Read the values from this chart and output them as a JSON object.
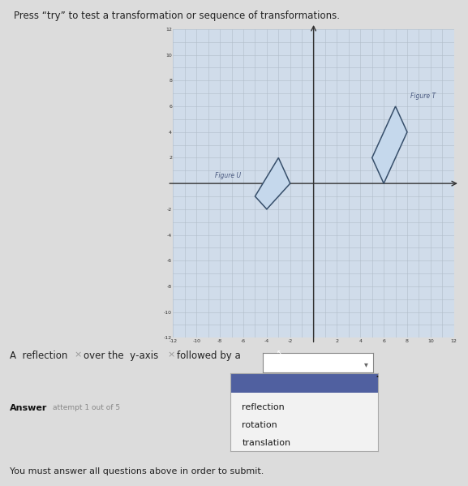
{
  "title": "Press “try” to test a transformation or sequence of transformations.",
  "bg_color": "#dcdcdc",
  "plot_bg_color": "#d0dcea",
  "grid_color": "#b0bcc8",
  "axis_color": "#333333",
  "figure_T_label": "Figure T",
  "figure_U_label": "Figure U",
  "figure_T_vertices": [
    [
      5,
      2
    ],
    [
      7,
      6
    ],
    [
      8,
      4
    ],
    [
      6,
      0
    ]
  ],
  "figure_U_vertices": [
    [
      -5,
      -1
    ],
    [
      -3,
      2
    ],
    [
      -2,
      0
    ],
    [
      -4,
      -2
    ]
  ],
  "figure_fill_color": "#c5d8ec",
  "figure_edge_color": "#374f6b",
  "xmin": -12,
  "xmax": 12,
  "ymin": -12,
  "ymax": 12,
  "popup_items": [
    "reflection",
    "rotation",
    "translation"
  ],
  "popup_header_color": "#5060a0",
  "popup_bg_color": "#f2f2f2",
  "submit_text": "You must answer all questions above in order to submit."
}
